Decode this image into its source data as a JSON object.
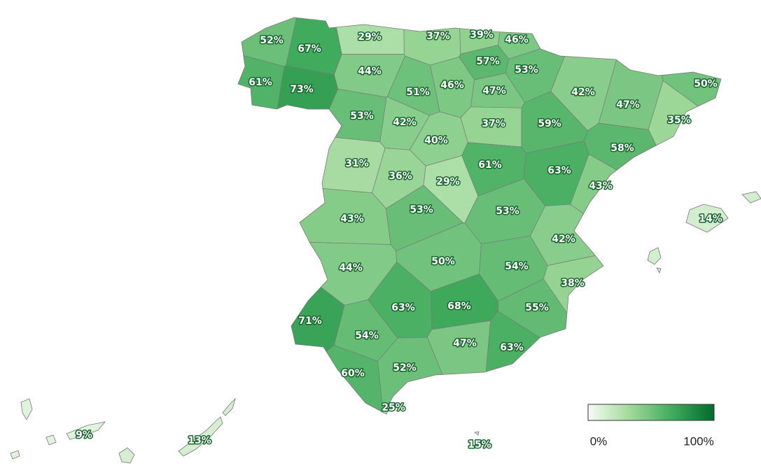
{
  "chart_data": {
    "type": "choropleth",
    "values": [
      52,
      67,
      29,
      37,
      39,
      46,
      57,
      53,
      61,
      73,
      44,
      51,
      46,
      47,
      42,
      50,
      47,
      35,
      53,
      42,
      37,
      59,
      58,
      40,
      31,
      36,
      29,
      61,
      63,
      43,
      43,
      53,
      53,
      42,
      44,
      50,
      54,
      38,
      71,
      63,
      68,
      55,
      54,
      47,
      63,
      60,
      52,
      14,
      9,
      13,
      25,
      15
    ],
    "value_labels": [
      "52%",
      "67%",
      "29%",
      "37%",
      "39%",
      "46%",
      "57%",
      "53%",
      "61%",
      "73%",
      "44%",
      "51%",
      "46%",
      "47%",
      "42%",
      "50%",
      "47%",
      "35%",
      "53%",
      "42%",
      "37%",
      "59%",
      "58%",
      "40%",
      "31%",
      "36%",
      "29%",
      "61%",
      "63%",
      "43%",
      "43%",
      "53%",
      "53%",
      "42%",
      "44%",
      "50%",
      "54%",
      "38%",
      "71%",
      "63%",
      "68%",
      "55%",
      "54%",
      "47%",
      "63%",
      "60%",
      "52%",
      "14%",
      "9%",
      "13%",
      "25%",
      "15%"
    ],
    "colorscale": [
      "#f7fcf5",
      "#a1d99b",
      "#41ab5d",
      "#006b2c"
    ],
    "legend": {
      "ticks": [
        {
          "value": 0,
          "label": "0%"
        },
        {
          "value": 100,
          "label": "100%"
        }
      ]
    }
  }
}
